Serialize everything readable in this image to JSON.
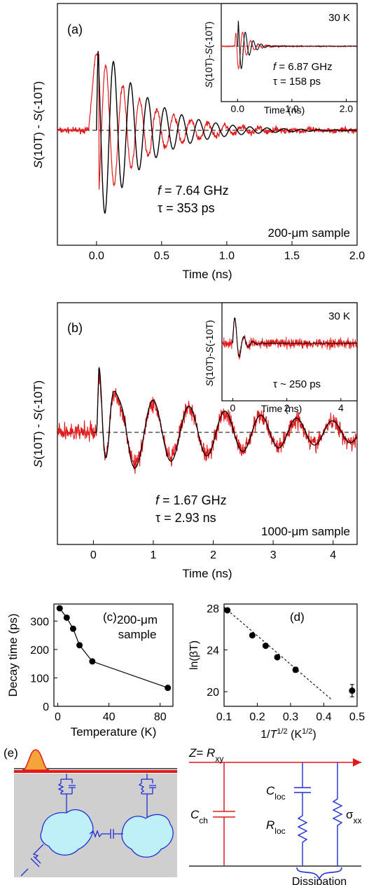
{
  "colors": {
    "data": "#e0191a",
    "fit": "#000000",
    "circuit": "#1f2fd6",
    "wire": "#e0191a",
    "droplet": "#bff0f8",
    "gray": "#cfcfcf",
    "pulse": "#f4a53a"
  },
  "chart_data": [
    {
      "id": "a",
      "type": "line",
      "panel_label": "(a)",
      "xlabel": "Time (ns)",
      "ylabel_s": "S",
      "ylabel_a": "(10T) - ",
      "ylabel_b": "(-10T)",
      "xlim": [
        -0.3,
        2.0
      ],
      "xticks": [
        "0.0",
        "0.5",
        "1.0",
        "1.5",
        "2.0"
      ],
      "xtick_values": [
        0.0,
        0.5,
        1.0,
        1.5,
        2.0
      ],
      "ylim": [
        -1.1,
        1.05
      ],
      "series": [
        {
          "role": "data",
          "model": {
            "f": 7.64,
            "tau_ns": 0.353,
            "amp": 0.95,
            "t0": -0.02,
            "phase": 0.35,
            "noise": 0.03
          }
        },
        {
          "role": "fit",
          "model": {
            "f": 7.64,
            "tau_ns": 0.353,
            "amp": 1.0,
            "t0": 0.0,
            "phase": 0.0
          }
        }
      ],
      "annotations": {
        "f_sym": "f",
        "f_val": " = 7.64 GHz",
        "tau_val": "τ = 353 ps",
        "sample": "200-μm sample"
      },
      "inset": {
        "temp": "30 K",
        "xlabel": "Time (ns)",
        "ylabel_a": "(10T)-",
        "ylabel_b": "(-10T)",
        "ylabel_s": "S",
        "xlim": [
          -0.3,
          2.2
        ],
        "xticks": [
          "0.0",
          "1.0",
          "2.0"
        ],
        "xtick_values": [
          0.0,
          1.0,
          2.0
        ],
        "f_sym": "f",
        "f_val": " = 6.87 GHz",
        "tau_val": "τ = 158 ps",
        "model": {
          "f": 6.87,
          "tau_ns": 0.158
        }
      }
    },
    {
      "id": "b",
      "type": "line",
      "panel_label": "(b)",
      "xlabel": "Time (ns)",
      "ylabel_s": "S",
      "ylabel_a": "(10T) - ",
      "ylabel_b": "(-10T)",
      "xlim": [
        -0.6,
        4.4
      ],
      "xticks": [
        "0",
        "1",
        "2",
        "3",
        "4"
      ],
      "xtick_values": [
        0,
        1,
        2,
        3,
        4
      ],
      "ylim": [
        -1.15,
        1.1
      ],
      "series": [
        {
          "role": "data",
          "model": {
            "f": 1.67,
            "tau_ns": 2.93,
            "amp": 0.3,
            "noise": 0.1
          }
        },
        {
          "role": "fit",
          "model": {
            "f": 1.67,
            "tau_ns": 2.93,
            "amp": 0.3
          }
        }
      ],
      "annotations": {
        "f_sym": "f",
        "f_val": " = 1.67 GHz",
        "tau_val": "τ = 2.93 ns",
        "sample": "1000-μm sample"
      },
      "inset": {
        "temp": "30 K",
        "xlabel": "Time (ns)",
        "ylabel_a": "(10T)-",
        "ylabel_b": "(-10T)",
        "ylabel_s": "S",
        "xlim": [
          -0.4,
          4.6
        ],
        "xticks": [
          "0",
          "2",
          "4"
        ],
        "xtick_values": [
          0,
          2,
          4
        ],
        "tau_val": "τ ~ 250 ps"
      }
    },
    {
      "id": "c",
      "type": "line",
      "panel_label": "(c)",
      "xlabel": "Temperature (K)",
      "ylabel": "Decay time (ps)",
      "xlim": [
        -3,
        90
      ],
      "ylim": [
        0,
        360
      ],
      "xticks": [
        "0",
        "40",
        "80"
      ],
      "xtick_values": [
        0,
        40,
        80
      ],
      "yticks": [
        "0",
        "100",
        "200",
        "300"
      ],
      "ytick_values": [
        0,
        100,
        200,
        300
      ],
      "sample_line1": "200-μm",
      "sample_line2": "sample",
      "x": [
        1.5,
        7,
        12,
        17,
        27,
        86
      ],
      "y": [
        345,
        312,
        273,
        215,
        158,
        65
      ]
    },
    {
      "id": "d",
      "type": "scatter",
      "panel_label": "(d)",
      "ylabel": "ln(βT)",
      "xlabel_pre": "1/",
      "xlabel_sym": "T",
      "xlabel_sup": "1/2",
      "xlabel_post": " (K",
      "xlabel_sup2": "1/2",
      "xlabel_end": ")",
      "xlim": [
        0.1,
        0.5
      ],
      "ylim": [
        18.6,
        28.4
      ],
      "xticks": [
        "0.1",
        "0.2",
        "0.3",
        "0.4",
        "0.5"
      ],
      "xtick_values": [
        0.1,
        0.2,
        0.3,
        0.4,
        0.5
      ],
      "yticks": [
        "20",
        "24",
        "28"
      ],
      "ytick_values": [
        20,
        24,
        28
      ],
      "x": [
        0.11,
        0.185,
        0.225,
        0.26,
        0.315,
        0.485
      ],
      "y": [
        27.8,
        25.4,
        24.4,
        23.3,
        22.1,
        20.1
      ],
      "yerr": [
        0.15,
        0.15,
        0.15,
        0.15,
        0.25,
        0.6
      ],
      "fit_line": {
        "x": [
          0.1,
          0.425
        ],
        "y": [
          28.1,
          19.2
        ]
      }
    }
  ],
  "diagram_e": {
    "label": "(e)",
    "z_sym": "Z",
    "z_eq": "= ",
    "z_r": "R",
    "z_sub": "xy",
    "cch": "C",
    "cch_sub": "ch",
    "cloc": "C",
    "cloc_sub": "loc",
    "rloc": "R",
    "rloc_sub": "loc",
    "sigma": "σ",
    "sigma_sub": "xx",
    "dissipation": "Dissipation"
  }
}
